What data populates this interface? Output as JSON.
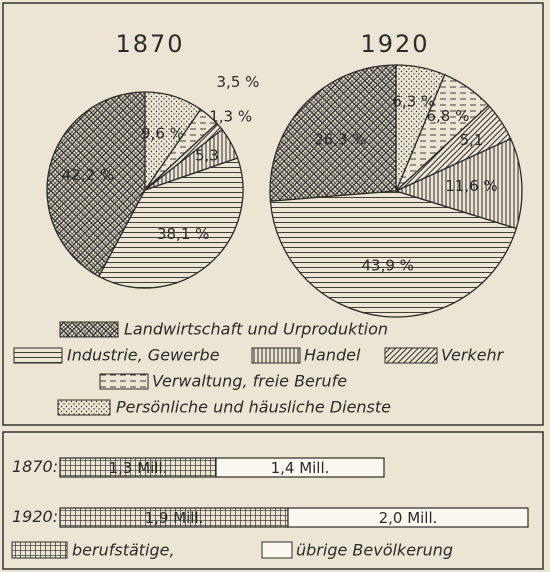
{
  "chart_data": [
    {
      "type": "pie",
      "title": "1870",
      "values": [
        42.2,
        38.1,
        5.3,
        1.3,
        3.5,
        9.6
      ],
      "value_labels": [
        "42,2 %",
        "38,1 %",
        "5,3",
        "1,3 %",
        "3,5 %",
        "9,6 %"
      ]
    },
    {
      "type": "pie",
      "title": "1920",
      "values": [
        26.3,
        43.9,
        11.6,
        5.1,
        6.8,
        6.3
      ],
      "value_labels": [
        "26,3 %",
        "43,9 %",
        "11,6 %",
        "5,1",
        "6,8 %",
        "6,3 %"
      ]
    },
    {
      "type": "bar",
      "orientation": "horizontal",
      "stacked": true,
      "categories": [
        "1870:",
        "1920:"
      ],
      "series": [
        {
          "name": "berufstätige,",
          "pattern": "grid",
          "values": [
            1.3,
            1.9
          ],
          "value_labels": [
            "1,3 Mill.",
            "1,9 Mill."
          ]
        },
        {
          "name": "übrige Bevölkerung",
          "pattern": "none",
          "values": [
            1.4,
            2.0
          ],
          "value_labels": [
            "1,4 Mill.",
            "2,0 Mill."
          ]
        }
      ]
    }
  ],
  "legend": {
    "categories": [
      "Landwirtschaft und Urproduktion",
      "Industrie, Gewerbe",
      "Handel",
      "Verkehr",
      "Verwaltung, freie Berufe",
      "Persönliche und häusliche Dienste"
    ],
    "patterns": [
      "crosshatch",
      "horizontal",
      "vertical",
      "diagonal",
      "dashed",
      "dots"
    ]
  }
}
